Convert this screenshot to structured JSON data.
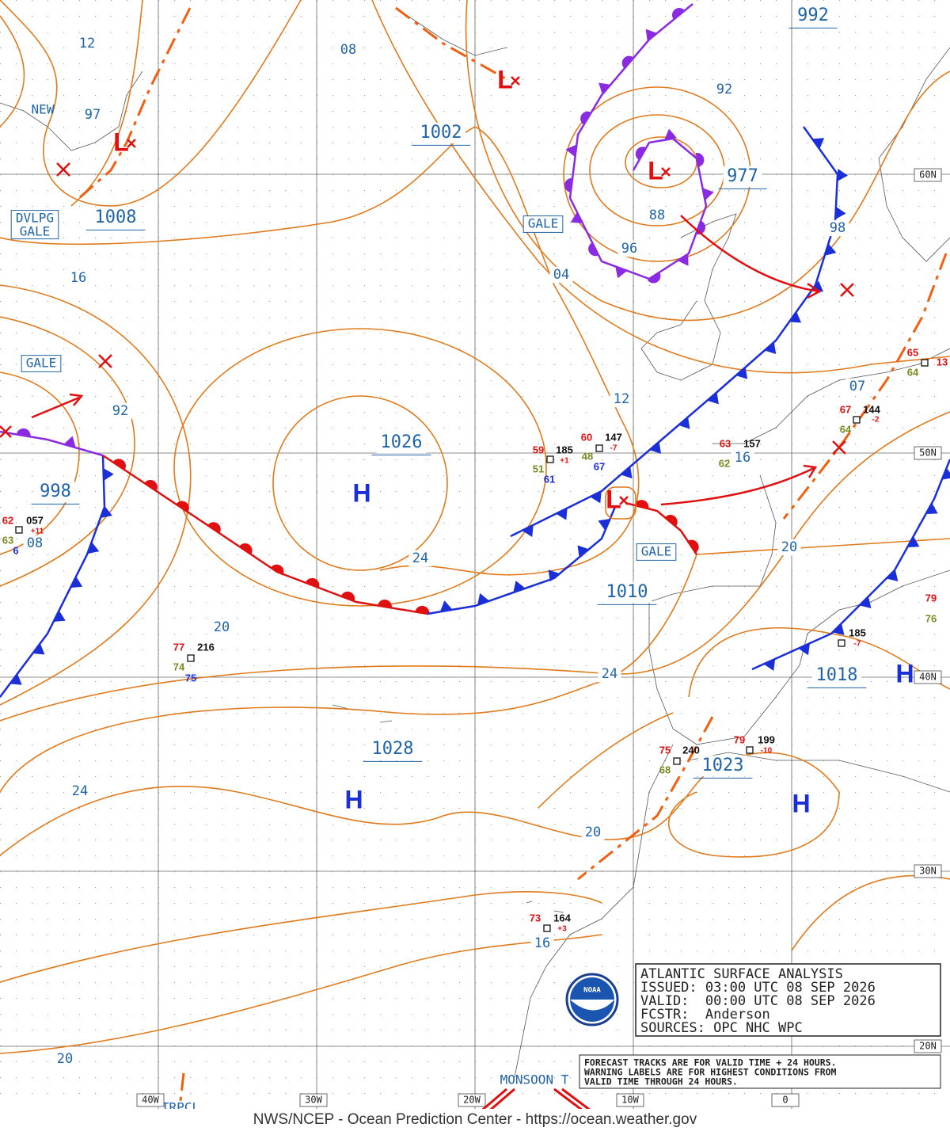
{
  "map": {
    "isobar_labels": [
      "12",
      "08",
      "1002",
      "92",
      "977",
      "992",
      "97",
      "1008",
      "88",
      "96",
      "04",
      "98",
      "16",
      "92",
      "1026",
      "12",
      "07",
      "998",
      "08",
      "24",
      "1010",
      "20",
      "16",
      "20",
      "24",
      "1018",
      "1028",
      "1023",
      "24",
      "20",
      "16",
      "20"
    ],
    "boxed_labels": [
      "NEW",
      "DVLPG",
      "GALE",
      "GALE",
      "GALE",
      "GALE",
      "MONSOON T",
      "TRPCL"
    ],
    "lat_labels": [
      "60N",
      "50N",
      "40N",
      "30N",
      "20N"
    ],
    "lon_labels": [
      "40W",
      "30W",
      "20W",
      "10W",
      "0"
    ],
    "highs": [
      "H",
      "H",
      "H",
      "H"
    ],
    "lows": [
      "L",
      "L",
      "L",
      "L"
    ],
    "station_values": [
      "59",
      "185",
      "+1",
      "48",
      "51",
      "61",
      "60",
      "147",
      "-7",
      "67",
      "63",
      "157",
      "62",
      "67",
      "144",
      "-2",
      "64",
      "65",
      "13",
      "64",
      "62",
      "057",
      "+11",
      "63",
      "6",
      "77",
      "216",
      "74",
      "75",
      "75",
      "240",
      "68",
      "79",
      "199",
      "-10",
      "79",
      "76",
      "185",
      "-7",
      "73",
      "164",
      "+3"
    ]
  },
  "info_box": {
    "lines": [
      "ATLANTIC SURFACE ANALYSIS",
      "ISSUED: 03:00 UTC 08 SEP 2026",
      "VALID:  00:00 UTC 08 SEP 2026",
      "FCSTR:  Anderson",
      "SOURCES: OPC NHC WPC"
    ]
  },
  "note": {
    "lines": [
      "FORECAST TRACKS ARE FOR VALID TIME + 24 HOURS.",
      "WARNING LABELS ARE FOR HIGHEST CONDITIONS FROM",
      "VALID TIME THROUGH 24 HOURS."
    ]
  },
  "logo": "NOAA",
  "footer": "NWS/NCEP - Ocean Prediction Center - https://ocean.weather.gov"
}
